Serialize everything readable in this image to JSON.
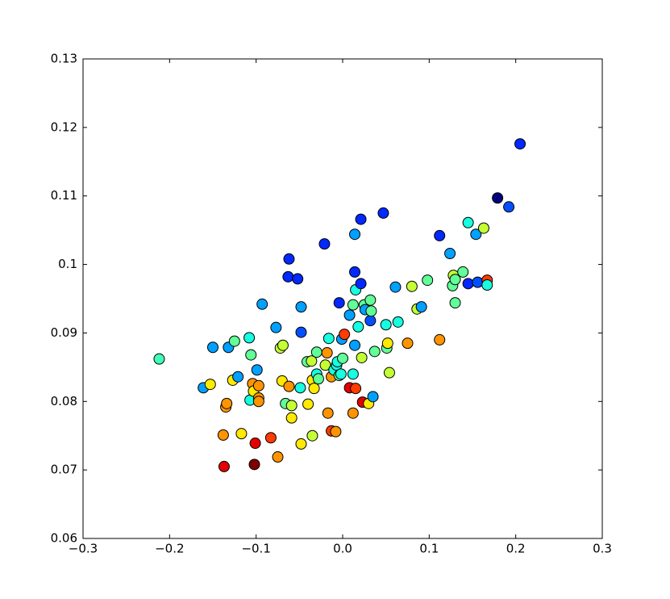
{
  "chart_data": {
    "type": "scatter",
    "x": [
      -0.212,
      -0.161,
      -0.153,
      -0.15,
      -0.132,
      -0.138,
      -0.137,
      -0.135,
      -0.134,
      -0.127,
      -0.125,
      -0.121,
      -0.117,
      -0.108,
      -0.106,
      -0.107,
      -0.104,
      -0.103,
      -0.102,
      -0.101,
      -0.099,
      -0.097,
      -0.097,
      -0.097,
      -0.093,
      -0.083,
      -0.077,
      -0.075,
      -0.072,
      -0.069,
      -0.07,
      -0.066,
      -0.062,
      -0.062,
      -0.063,
      -0.059,
      -0.059,
      -0.052,
      -0.049,
      -0.048,
      -0.048,
      -0.048,
      -0.04,
      -0.041,
      -0.036,
      -0.035,
      -0.035,
      -0.033,
      -0.03,
      -0.03,
      -0.028,
      -0.021,
      -0.02,
      -0.018,
      -0.017,
      -0.016,
      -0.013,
      -0.013,
      -0.01,
      -0.008,
      -0.007,
      -0.006,
      -0.004,
      -0.004,
      -0.002,
      -0.001,
      0.0,
      0.002,
      0.008,
      0.008,
      0.012,
      0.012,
      0.012,
      0.014,
      0.014,
      0.014,
      0.015,
      0.015,
      0.018,
      0.021,
      0.021,
      0.022,
      0.023,
      0.025,
      0.026,
      0.03,
      0.032,
      0.032,
      0.033,
      0.035,
      0.037,
      0.047,
      0.05,
      0.051,
      0.052,
      0.054,
      0.061,
      0.064,
      0.075,
      0.08,
      0.086,
      0.091,
      0.098,
      0.112,
      0.112,
      0.124,
      0.127,
      0.128,
      0.13,
      0.13,
      0.139,
      0.145,
      0.145,
      0.154,
      0.156,
      0.163,
      0.167,
      0.167,
      0.179,
      0.192,
      0.205
    ],
    "series": [
      {
        "values": [
          0.0862,
          0.082,
          0.0825,
          0.0879,
          0.0879,
          0.0751,
          0.0705,
          0.0792,
          0.0797,
          0.0831,
          0.0888,
          0.0836,
          0.0753,
          0.0893,
          0.0868,
          0.0802,
          0.0826,
          0.0815,
          0.0708,
          0.0739,
          0.0846,
          0.0805,
          0.08,
          0.0823,
          0.0942,
          0.0747,
          0.0908,
          0.0719,
          0.0878,
          0.0882,
          0.083,
          0.0797,
          0.0822,
          0.1008,
          0.0982,
          0.0794,
          0.0776,
          0.0979,
          0.082,
          0.0938,
          0.0901,
          0.0738,
          0.0796,
          0.0858,
          0.0859,
          0.0831,
          0.075,
          0.0819,
          0.0872,
          0.084,
          0.0833,
          0.103,
          0.0853,
          0.0871,
          0.0783,
          0.0892,
          0.0757,
          0.0836,
          0.0846,
          0.0756,
          0.0853,
          0.0858,
          0.0944,
          0.0838,
          0.084,
          0.0891,
          0.0863,
          0.0898,
          0.0926,
          0.082,
          0.084,
          0.0941,
          0.0783,
          0.0882,
          0.1044,
          0.0989,
          0.0963,
          0.0819,
          0.0909,
          0.0972,
          0.1066,
          0.0864,
          0.0799,
          0.0941,
          0.0934,
          0.0797,
          0.0948,
          0.0918,
          0.0932,
          0.0807,
          0.0873,
          0.1075,
          0.0912,
          0.0878,
          0.0885,
          0.0842,
          0.0967,
          0.0916,
          0.0885,
          0.0968,
          0.0935,
          0.0938,
          0.0977,
          0.089,
          0.1042,
          0.1016,
          0.0969,
          0.0984,
          0.0944,
          0.0978,
          0.0989,
          0.1061,
          0.0972,
          0.1044,
          0.0974,
          0.1053,
          0.0977,
          0.097,
          0.1097,
          0.1084,
          0.1176
        ],
        "colors": [
          "#40ffb7",
          "#00a0ff",
          "#ffea00",
          "#00a0ff",
          "#00a0ff",
          "#ff9400",
          "#e40000",
          "#ff9400",
          "#ff9400",
          "#ffea00",
          "#60ff97",
          "#00a0ff",
          "#ffea00",
          "#16ffe1",
          "#60ff97",
          "#16ffe1",
          "#ff9400",
          "#ffea00",
          "#7f0000",
          "#e40000",
          "#00a0ff",
          "#ff9400",
          "#ff9400",
          "#ff9400",
          "#00a0ff",
          "#ff3b00",
          "#00a0ff",
          "#ff9400",
          "#c4ff33",
          "#c4ff33",
          "#ffea00",
          "#60ff97",
          "#ff9400",
          "#0028ff",
          "#0028ff",
          "#c4ff33",
          "#ffea00",
          "#0028ff",
          "#16ffe1",
          "#00a0ff",
          "#0050ff",
          "#ffea00",
          "#ffea00",
          "#60ff97",
          "#c4ff33",
          "#ffea00",
          "#c4ff33",
          "#ffea00",
          "#60ff97",
          "#16ffe1",
          "#60ff97",
          "#0028ff",
          "#c4ff33",
          "#ff9400",
          "#ff9400",
          "#16ffe1",
          "#ff3b00",
          "#ff9400",
          "#16ffe1",
          "#ff9400",
          "#16ffe1",
          "#16ffe1",
          "#0028ff",
          "#60ff97",
          "#16ffe1",
          "#00a0ff",
          "#60ff97",
          "#ff3b00",
          "#00a0ff",
          "#e40000",
          "#16ffe1",
          "#60ff97",
          "#ff9400",
          "#00a0ff",
          "#00a0ff",
          "#0028ff",
          "#16ffe1",
          "#ff3b00",
          "#16ffe1",
          "#0028ff",
          "#0028ff",
          "#c4ff33",
          "#e40000",
          "#60ff97",
          "#00a0ff",
          "#ffea00",
          "#60ff97",
          "#0050ff",
          "#60ff97",
          "#00a0ff",
          "#60ff97",
          "#0028ff",
          "#16ffe1",
          "#60ff97",
          "#ffea00",
          "#c4ff33",
          "#00a0ff",
          "#16ffe1",
          "#ff9400",
          "#c4ff33",
          "#c4ff33",
          "#00a0ff",
          "#60ff97",
          "#ff9400",
          "#0028ff",
          "#00a0ff",
          "#60ff97",
          "#c4ff33",
          "#60ff97",
          "#60ff97",
          "#60ff97",
          "#16ffe1",
          "#0028ff",
          "#00a0ff",
          "#0050ff",
          "#c4ff33",
          "#ff3b00",
          "#16ffe1",
          "#00007f",
          "#0050ff",
          "#0028ff"
        ]
      }
    ],
    "xlim": [
      -0.3,
      0.3
    ],
    "xticks": [
      {
        "value": -0.3,
        "label": "−0.3"
      },
      {
        "value": -0.2,
        "label": "−0.2"
      },
      {
        "value": -0.1,
        "label": "−0.1"
      },
      {
        "value": 0,
        "label": "0.0"
      },
      0.1,
      0.2,
      0.3
    ],
    "ylim": [
      0.06,
      0.13
    ],
    "yticks": [
      0.06,
      0.07,
      0.08,
      0.09,
      0.1,
      0.11,
      0.12,
      0.13
    ]
  }
}
